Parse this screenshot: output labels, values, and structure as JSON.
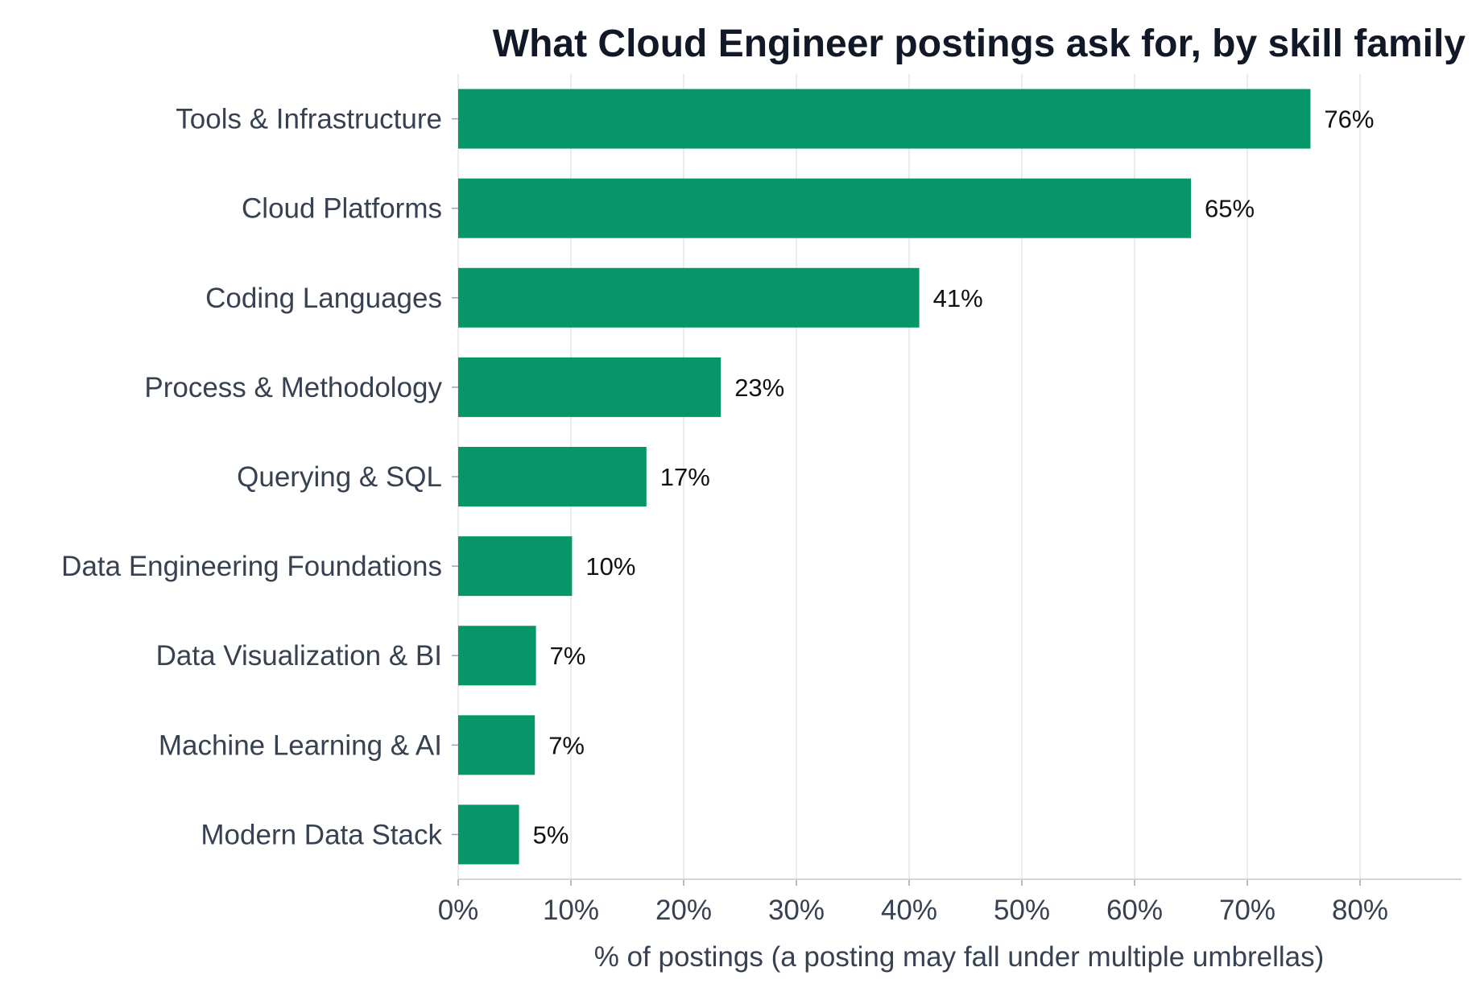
{
  "chart_data": {
    "type": "bar",
    "orientation": "horizontal",
    "title": "What Cloud Engineer postings ask for, by skill family",
    "xlabel": "% of postings (a posting may fall under multiple umbrellas)",
    "ylabel": "",
    "xlim": [
      0,
      89
    ],
    "x_ticks": [
      0,
      10,
      20,
      30,
      40,
      50,
      60,
      70,
      80
    ],
    "x_tick_labels": [
      "0%",
      "10%",
      "20%",
      "30%",
      "40%",
      "50%",
      "60%",
      "70%",
      "80%"
    ],
    "grid": "vertical",
    "bar_color": "#069669",
    "categories": [
      "Tools & Infrastructure",
      "Cloud Platforms",
      "Coding Languages",
      "Process & Methodology",
      "Querying & SQL",
      "Data Engineering Foundations",
      "Data Visualization & BI",
      "Machine Learning & AI",
      "Modern Data Stack"
    ],
    "values": [
      75.6,
      65.0,
      40.9,
      23.3,
      16.7,
      10.1,
      6.9,
      6.8,
      5.4
    ],
    "data_labels": [
      "76%",
      "65%",
      "41%",
      "23%",
      "17%",
      "10%",
      "7%",
      "7%",
      "5%"
    ]
  }
}
